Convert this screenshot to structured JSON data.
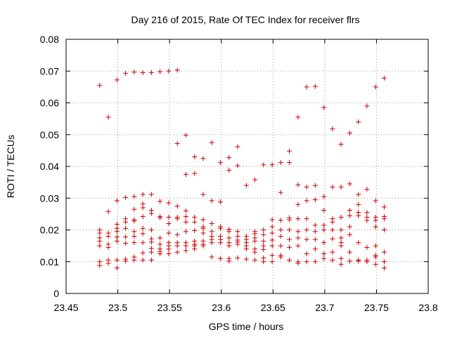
{
  "chart_data": {
    "type": "scatter",
    "title": "Day 216 of 2015, Rate Of TEC Index for receiver flrs",
    "xlabel": "GPS time / hours",
    "ylabel": "ROTI / TECUs",
    "xlim": [
      23.45,
      23.8
    ],
    "ylim": [
      0,
      0.08
    ],
    "x_ticks": [
      23.45,
      23.5,
      23.55,
      23.6,
      23.65,
      23.7,
      23.75,
      23.8
    ],
    "x_tick_labels": [
      "23.45",
      "23.5",
      "23.55",
      "23.6",
      "23.65",
      "23.7",
      "23.75",
      "23.8"
    ],
    "y_ticks": [
      0,
      0.01,
      0.02,
      0.03,
      0.04,
      0.05,
      0.06,
      0.07,
      0.08
    ],
    "y_tick_labels": [
      "0",
      "0.01",
      "0.02",
      "0.03",
      "0.04",
      "0.05",
      "0.06",
      "0.07",
      "0.08"
    ],
    "grid": true,
    "marker": "+",
    "color": "#cc0000",
    "series": [
      {
        "name": "ROTI",
        "points": [
          [
            23.4825,
            0.0655
          ],
          [
            23.4825,
            0.02
          ],
          [
            23.4825,
            0.019
          ],
          [
            23.4825,
            0.0175
          ],
          [
            23.4825,
            0.0165
          ],
          [
            23.4825,
            0.015
          ],
          [
            23.4825,
            0.01
          ],
          [
            23.4825,
            0.0088
          ],
          [
            23.4908,
            0.0555
          ],
          [
            23.4908,
            0.0258
          ],
          [
            23.4908,
            0.019
          ],
          [
            23.4908,
            0.018
          ],
          [
            23.4908,
            0.0155
          ],
          [
            23.4908,
            0.0145
          ],
          [
            23.4908,
            0.0105
          ],
          [
            23.4908,
            0.0095
          ],
          [
            23.4992,
            0.0672
          ],
          [
            23.4992,
            0.0292
          ],
          [
            23.4992,
            0.0218
          ],
          [
            23.4992,
            0.0205
          ],
          [
            23.4992,
            0.0195
          ],
          [
            23.4992,
            0.0178
          ],
          [
            23.4992,
            0.0165
          ],
          [
            23.4992,
            0.0105
          ],
          [
            23.4992,
            0.008
          ],
          [
            23.5075,
            0.0693
          ],
          [
            23.5075,
            0.0302
          ],
          [
            23.5075,
            0.0235
          ],
          [
            23.5075,
            0.0225
          ],
          [
            23.5075,
            0.0205
          ],
          [
            23.5075,
            0.0178
          ],
          [
            23.5075,
            0.0158
          ],
          [
            23.5075,
            0.0108
          ],
          [
            23.5075,
            0.0102
          ],
          [
            23.5158,
            0.0697
          ],
          [
            23.5158,
            0.0305
          ],
          [
            23.5158,
            0.0265
          ],
          [
            23.5158,
            0.0232
          ],
          [
            23.5158,
            0.0228
          ],
          [
            23.5158,
            0.0195
          ],
          [
            23.5158,
            0.018
          ],
          [
            23.5158,
            0.016
          ],
          [
            23.5158,
            0.0115
          ],
          [
            23.5158,
            0.0105
          ],
          [
            23.5242,
            0.0695
          ],
          [
            23.5242,
            0.0312
          ],
          [
            23.5242,
            0.0282
          ],
          [
            23.5242,
            0.027
          ],
          [
            23.5242,
            0.0242
          ],
          [
            23.5242,
            0.0205
          ],
          [
            23.5242,
            0.0188
          ],
          [
            23.5242,
            0.016
          ],
          [
            23.5242,
            0.0128
          ],
          [
            23.5242,
            0.0105
          ],
          [
            23.5325,
            0.0695
          ],
          [
            23.5325,
            0.0312
          ],
          [
            23.5325,
            0.0262
          ],
          [
            23.5325,
            0.0252
          ],
          [
            23.5325,
            0.02
          ],
          [
            23.5325,
            0.0172
          ],
          [
            23.5325,
            0.0162
          ],
          [
            23.5325,
            0.0142
          ],
          [
            23.5325,
            0.013
          ],
          [
            23.5325,
            0.0105
          ],
          [
            23.5408,
            0.0698
          ],
          [
            23.5408,
            0.029
          ],
          [
            23.5408,
            0.0242
          ],
          [
            23.5408,
            0.0238
          ],
          [
            23.5408,
            0.0175
          ],
          [
            23.5408,
            0.0155
          ],
          [
            23.5408,
            0.014
          ],
          [
            23.5408,
            0.0132
          ],
          [
            23.5408,
            0.0125
          ],
          [
            23.5492,
            0.07
          ],
          [
            23.5492,
            0.0285
          ],
          [
            23.5492,
            0.024
          ],
          [
            23.5492,
            0.022
          ],
          [
            23.5492,
            0.019
          ],
          [
            23.5492,
            0.016
          ],
          [
            23.5492,
            0.015
          ],
          [
            23.5492,
            0.014
          ],
          [
            23.5492,
            0.0125
          ],
          [
            23.5575,
            0.0703
          ],
          [
            23.5575,
            0.0472
          ],
          [
            23.5575,
            0.0275
          ],
          [
            23.5575,
            0.024
          ],
          [
            23.5575,
            0.0235
          ],
          [
            23.5575,
            0.0185
          ],
          [
            23.5575,
            0.016
          ],
          [
            23.5575,
            0.015
          ],
          [
            23.5575,
            0.013
          ],
          [
            23.5658,
            0.0498
          ],
          [
            23.5658,
            0.0375
          ],
          [
            23.5658,
            0.026
          ],
          [
            23.5658,
            0.0242
          ],
          [
            23.5658,
            0.0225
          ],
          [
            23.5658,
            0.0195
          ],
          [
            23.5658,
            0.016
          ],
          [
            23.5658,
            0.015
          ],
          [
            23.5658,
            0.0135
          ],
          [
            23.5742,
            0.043
          ],
          [
            23.5742,
            0.0378
          ],
          [
            23.5742,
            0.024
          ],
          [
            23.5742,
            0.0225
          ],
          [
            23.5742,
            0.0198
          ],
          [
            23.5742,
            0.0165
          ],
          [
            23.5742,
            0.0155
          ],
          [
            23.5742,
            0.015
          ],
          [
            23.5742,
            0.014
          ],
          [
            23.5825,
            0.0425
          ],
          [
            23.5825,
            0.0312
          ],
          [
            23.5825,
            0.0232
          ],
          [
            23.5825,
            0.021
          ],
          [
            23.5825,
            0.0205
          ],
          [
            23.5825,
            0.019
          ],
          [
            23.5825,
            0.0165
          ],
          [
            23.5825,
            0.0155
          ],
          [
            23.5825,
            0.015
          ],
          [
            23.5908,
            0.0475
          ],
          [
            23.5908,
            0.0292
          ],
          [
            23.5908,
            0.022
          ],
          [
            23.5908,
            0.0195
          ],
          [
            23.5908,
            0.018
          ],
          [
            23.5908,
            0.017
          ],
          [
            23.5908,
            0.016
          ],
          [
            23.5908,
            0.0115
          ],
          [
            23.5992,
            0.0412
          ],
          [
            23.5992,
            0.0288
          ],
          [
            23.5992,
            0.021
          ],
          [
            23.5992,
            0.0205
          ],
          [
            23.5992,
            0.018
          ],
          [
            23.5992,
            0.017
          ],
          [
            23.5992,
            0.016
          ],
          [
            23.5992,
            0.011
          ],
          [
            23.6075,
            0.0428
          ],
          [
            23.6075,
            0.0388
          ],
          [
            23.6075,
            0.0202
          ],
          [
            23.6075,
            0.0195
          ],
          [
            23.6075,
            0.0175
          ],
          [
            23.6075,
            0.016
          ],
          [
            23.6075,
            0.015
          ],
          [
            23.6075,
            0.011
          ],
          [
            23.6075,
            0.0102
          ],
          [
            23.6158,
            0.0462
          ],
          [
            23.6158,
            0.0402
          ],
          [
            23.6158,
            0.0195
          ],
          [
            23.6158,
            0.018
          ],
          [
            23.6158,
            0.0168
          ],
          [
            23.6158,
            0.0162
          ],
          [
            23.6158,
            0.0155
          ],
          [
            23.6158,
            0.0112
          ],
          [
            23.6242,
            0.034
          ],
          [
            23.6242,
            0.018
          ],
          [
            23.6242,
            0.017
          ],
          [
            23.6242,
            0.016
          ],
          [
            23.6242,
            0.015
          ],
          [
            23.6242,
            0.014
          ],
          [
            23.6242,
            0.0108
          ],
          [
            23.6325,
            0.0358
          ],
          [
            23.6325,
            0.0195
          ],
          [
            23.6325,
            0.0188
          ],
          [
            23.6325,
            0.0175
          ],
          [
            23.6325,
            0.0165
          ],
          [
            23.6325,
            0.014
          ],
          [
            23.6325,
            0.013
          ],
          [
            23.6325,
            0.0105
          ],
          [
            23.6408,
            0.0405
          ],
          [
            23.6408,
            0.02
          ],
          [
            23.6408,
            0.0185
          ],
          [
            23.6408,
            0.0165
          ],
          [
            23.6408,
            0.015
          ],
          [
            23.6408,
            0.0138
          ],
          [
            23.6408,
            0.0112
          ],
          [
            23.6408,
            0.01
          ],
          [
            23.6492,
            0.0405
          ],
          [
            23.6492,
            0.0232
          ],
          [
            23.6492,
            0.021
          ],
          [
            23.6492,
            0.019
          ],
          [
            23.6492,
            0.0168
          ],
          [
            23.6492,
            0.015
          ],
          [
            23.6492,
            0.012
          ],
          [
            23.6492,
            0.01
          ],
          [
            23.6575,
            0.0412
          ],
          [
            23.6575,
            0.0318
          ],
          [
            23.6575,
            0.023
          ],
          [
            23.6575,
            0.02
          ],
          [
            23.6575,
            0.018
          ],
          [
            23.6575,
            0.015
          ],
          [
            23.6575,
            0.012
          ],
          [
            23.6575,
            0.0115
          ],
          [
            23.6658,
            0.0448
          ],
          [
            23.6658,
            0.0412
          ],
          [
            23.6658,
            0.0238
          ],
          [
            23.6658,
            0.0232
          ],
          [
            23.6658,
            0.02
          ],
          [
            23.6658,
            0.017
          ],
          [
            23.6658,
            0.0145
          ],
          [
            23.6658,
            0.0105
          ],
          [
            23.6742,
            0.0555
          ],
          [
            23.6742,
            0.0342
          ],
          [
            23.6742,
            0.028
          ],
          [
            23.6742,
            0.0235
          ],
          [
            23.6742,
            0.0195
          ],
          [
            23.6742,
            0.0175
          ],
          [
            23.6742,
            0.015
          ],
          [
            23.6742,
            0.01
          ],
          [
            23.6742,
            0.0095
          ],
          [
            23.6825,
            0.065
          ],
          [
            23.6825,
            0.0335
          ],
          [
            23.6825,
            0.0292
          ],
          [
            23.6825,
            0.0235
          ],
          [
            23.6825,
            0.02
          ],
          [
            23.6825,
            0.017
          ],
          [
            23.6825,
            0.0125
          ],
          [
            23.6825,
            0.01
          ],
          [
            23.6908,
            0.0652
          ],
          [
            23.6908,
            0.034
          ],
          [
            23.6908,
            0.0295
          ],
          [
            23.6908,
            0.0215
          ],
          [
            23.6908,
            0.0195
          ],
          [
            23.6908,
            0.017
          ],
          [
            23.6908,
            0.014
          ],
          [
            23.6908,
            0.01
          ],
          [
            23.6992,
            0.0585
          ],
          [
            23.6992,
            0.0305
          ],
          [
            23.6992,
            0.0262
          ],
          [
            23.6992,
            0.0215
          ],
          [
            23.6992,
            0.02
          ],
          [
            23.6992,
            0.016
          ],
          [
            23.6992,
            0.0125
          ],
          [
            23.6992,
            0.011
          ],
          [
            23.7075,
            0.0518
          ],
          [
            23.7075,
            0.0335
          ],
          [
            23.7075,
            0.0235
          ],
          [
            23.7075,
            0.0225
          ],
          [
            23.7075,
            0.02
          ],
          [
            23.7075,
            0.0172
          ],
          [
            23.7075,
            0.013
          ],
          [
            23.7075,
            0.0105
          ],
          [
            23.7158,
            0.047
          ],
          [
            23.7158,
            0.0335
          ],
          [
            23.7158,
            0.024
          ],
          [
            23.7158,
            0.02
          ],
          [
            23.7158,
            0.0175
          ],
          [
            23.7158,
            0.016
          ],
          [
            23.7158,
            0.015
          ],
          [
            23.7158,
            0.011
          ],
          [
            23.7158,
            0.0092
          ],
          [
            23.7242,
            0.0505
          ],
          [
            23.7242,
            0.0345
          ],
          [
            23.7242,
            0.0262
          ],
          [
            23.7242,
            0.0245
          ],
          [
            23.7242,
            0.021
          ],
          [
            23.7242,
            0.0185
          ],
          [
            23.7242,
            0.013
          ],
          [
            23.7242,
            0.0102
          ],
          [
            23.7325,
            0.054
          ],
          [
            23.7325,
            0.0312
          ],
          [
            23.7325,
            0.028
          ],
          [
            23.7325,
            0.0255
          ],
          [
            23.7325,
            0.0245
          ],
          [
            23.7325,
            0.016
          ],
          [
            23.7325,
            0.0105
          ],
          [
            23.7325,
            0.0102
          ],
          [
            23.7408,
            0.059
          ],
          [
            23.7408,
            0.0328
          ],
          [
            23.7408,
            0.0255
          ],
          [
            23.7408,
            0.024
          ],
          [
            23.7408,
            0.023
          ],
          [
            23.7408,
            0.0145
          ],
          [
            23.7408,
            0.0105
          ],
          [
            23.7408,
            0.01
          ],
          [
            23.7492,
            0.065
          ],
          [
            23.7492,
            0.0292
          ],
          [
            23.7492,
            0.024
          ],
          [
            23.7492,
            0.023
          ],
          [
            23.7492,
            0.021
          ],
          [
            23.7492,
            0.015
          ],
          [
            23.7492,
            0.012
          ],
          [
            23.7492,
            0.0115
          ],
          [
            23.7492,
            0.0092
          ],
          [
            23.7575,
            0.0678
          ],
          [
            23.7575,
            0.0272
          ],
          [
            23.7575,
            0.0242
          ],
          [
            23.7575,
            0.0235
          ],
          [
            23.7575,
            0.02
          ],
          [
            23.7575,
            0.013
          ],
          [
            23.7575,
            0.01
          ],
          [
            23.7575,
            0.008
          ]
        ]
      }
    ]
  }
}
